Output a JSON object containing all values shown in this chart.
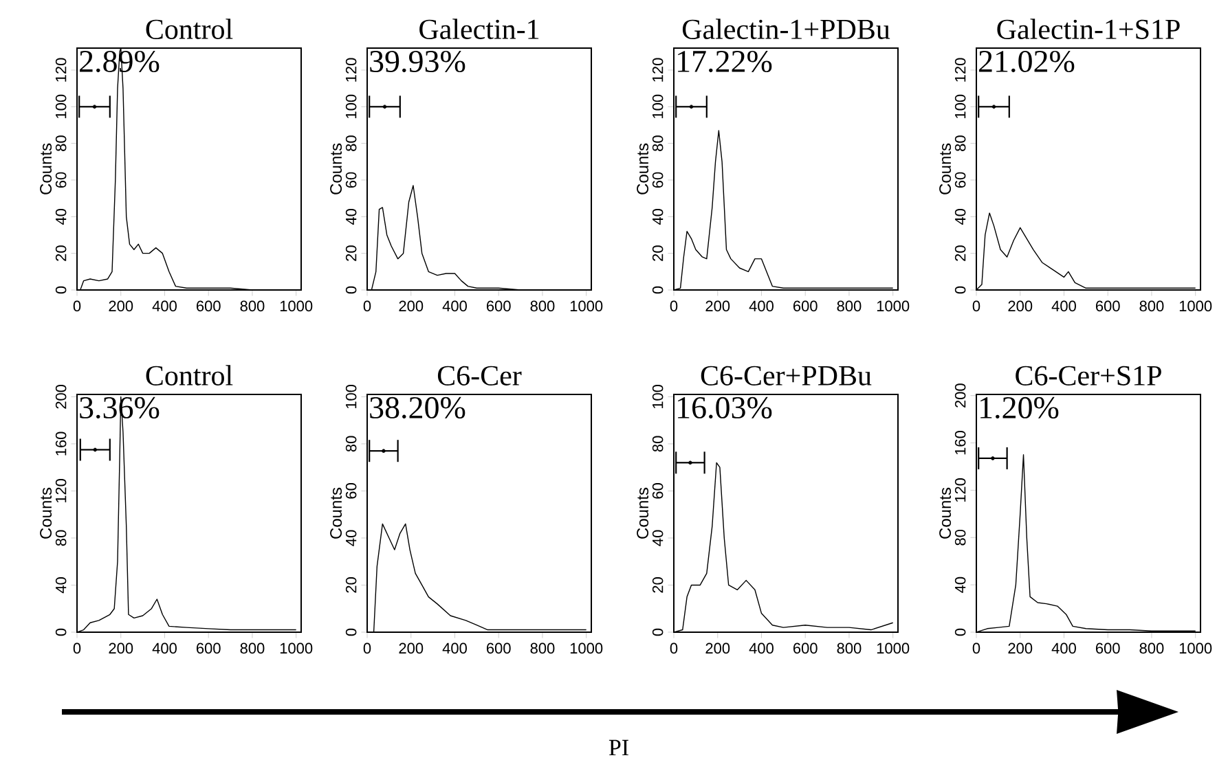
{
  "chart_data": [
    {
      "type": "line",
      "title": "Control",
      "ylabel": "Counts",
      "xlim": [
        0,
        1023
      ],
      "ylim": [
        0,
        132
      ],
      "xticks": [
        0,
        200,
        400,
        600,
        800,
        1000
      ],
      "yticks": [
        0,
        20,
        40,
        60,
        80,
        100,
        120
      ],
      "annotations": [
        "2.89%"
      ],
      "series": [
        {
          "type": "line",
          "color": "#000000",
          "x": [
            0,
            15,
            30,
            60,
            100,
            140,
            160,
            175,
            185,
            195,
            200,
            210,
            225,
            240,
            260,
            280,
            300,
            330,
            360,
            390,
            420,
            450,
            500,
            600,
            700,
            800,
            900,
            1000
          ],
          "values": [
            0,
            0,
            5,
            6,
            5,
            6,
            10,
            60,
            110,
            130,
            132,
            110,
            40,
            25,
            22,
            25,
            20,
            20,
            23,
            20,
            10,
            2,
            1,
            1,
            1,
            0,
            0,
            0
          ]
        },
        {
          "type": "scatter",
          "color": "#000000",
          "x": [
            80
          ],
          "values": [
            100
          ],
          "xerrors": [
            70
          ]
        }
      ]
    },
    {
      "type": "line",
      "title": "Galectin-1",
      "ylabel": "Counts",
      "xlim": [
        0,
        1023
      ],
      "ylim": [
        0,
        132
      ],
      "xticks": [
        0,
        200,
        400,
        600,
        800,
        1000
      ],
      "yticks": [
        0,
        20,
        40,
        60,
        80,
        100,
        120
      ],
      "annotations": [
        "39.93%"
      ],
      "series": [
        {
          "type": "line",
          "color": "#000000",
          "x": [
            0,
            20,
            40,
            55,
            70,
            90,
            110,
            140,
            165,
            190,
            210,
            230,
            250,
            280,
            320,
            360,
            400,
            430,
            460,
            500,
            600,
            700,
            800,
            900,
            1000
          ],
          "values": [
            0,
            0,
            10,
            44,
            45,
            30,
            24,
            17,
            20,
            48,
            57,
            40,
            20,
            10,
            8,
            9,
            9,
            5,
            2,
            1,
            1,
            0,
            0,
            0,
            0
          ]
        },
        {
          "type": "scatter",
          "color": "#000000",
          "x": [
            80
          ],
          "values": [
            100
          ],
          "xerrors": [
            70
          ]
        }
      ]
    },
    {
      "type": "line",
      "title": "Galectin-1+PDBu",
      "ylabel": "Counts",
      "xlim": [
        0,
        1023
      ],
      "ylim": [
        0,
        132
      ],
      "xticks": [
        0,
        200,
        400,
        600,
        800,
        1000
      ],
      "yticks": [
        0,
        20,
        40,
        60,
        80,
        100,
        120
      ],
      "annotations": [
        "17.22%"
      ],
      "series": [
        {
          "type": "line",
          "color": "#000000",
          "x": [
            0,
            30,
            45,
            60,
            80,
            100,
            130,
            150,
            175,
            190,
            205,
            220,
            240,
            260,
            300,
            340,
            370,
            400,
            430,
            450,
            500,
            600,
            700,
            800,
            900,
            1000
          ],
          "values": [
            0,
            1,
            18,
            32,
            28,
            22,
            18,
            17,
            45,
            70,
            87,
            70,
            22,
            17,
            12,
            10,
            17,
            17,
            8,
            2,
            1,
            1,
            1,
            1,
            1,
            1
          ]
        },
        {
          "type": "scatter",
          "color": "#000000",
          "x": [
            80
          ],
          "values": [
            100
          ],
          "xerrors": [
            70
          ]
        }
      ]
    },
    {
      "type": "line",
      "title": "Galectin-1+S1P",
      "ylabel": "Counts",
      "xlim": [
        0,
        1023
      ],
      "ylim": [
        0,
        132
      ],
      "xticks": [
        0,
        200,
        400,
        600,
        800,
        1000
      ],
      "yticks": [
        0,
        20,
        40,
        60,
        80,
        100,
        120
      ],
      "annotations": [
        "21.02%"
      ],
      "series": [
        {
          "type": "line",
          "color": "#000000",
          "x": [
            0,
            25,
            40,
            60,
            80,
            110,
            140,
            170,
            200,
            230,
            260,
            300,
            350,
            400,
            420,
            450,
            500,
            600,
            700,
            800,
            900,
            1000
          ],
          "values": [
            0,
            3,
            30,
            42,
            35,
            22,
            18,
            27,
            34,
            28,
            22,
            15,
            11,
            7,
            10,
            4,
            1,
            1,
            1,
            1,
            1,
            1
          ]
        },
        {
          "type": "scatter",
          "color": "#000000",
          "x": [
            80
          ],
          "values": [
            100
          ],
          "xerrors": [
            70
          ]
        }
      ]
    },
    {
      "type": "line",
      "title": "Control",
      "ylabel": "Counts",
      "xlim": [
        0,
        1023
      ],
      "ylim": [
        0,
        202
      ],
      "xticks": [
        0,
        200,
        400,
        600,
        800,
        1000
      ],
      "yticks": [
        0,
        40,
        80,
        120,
        160,
        200
      ],
      "annotations": [
        "3.36%"
      ],
      "series": [
        {
          "type": "line",
          "color": "#000000",
          "x": [
            0,
            30,
            60,
            100,
            150,
            170,
            185,
            195,
            200,
            210,
            225,
            235,
            260,
            300,
            340,
            365,
            390,
            420,
            500,
            600,
            700,
            800,
            900,
            1000
          ],
          "values": [
            0,
            2,
            8,
            10,
            15,
            20,
            60,
            150,
            200,
            170,
            90,
            15,
            12,
            14,
            20,
            28,
            15,
            5,
            4,
            3,
            2,
            2,
            2,
            2
          ]
        },
        {
          "type": "scatter",
          "color": "#000000",
          "x": [
            82.5
          ],
          "values": [
            155
          ],
          "xerrors": [
            67.5
          ]
        }
      ]
    },
    {
      "type": "line",
      "title": "C6-Cer",
      "ylabel": "Counts",
      "xlim": [
        0,
        1023
      ],
      "ylim": [
        0,
        101
      ],
      "xticks": [
        0,
        200,
        400,
        600,
        800,
        1000
      ],
      "yticks": [
        0,
        20,
        40,
        60,
        80,
        100
      ],
      "annotations": [
        "38.20%"
      ],
      "series": [
        {
          "type": "line",
          "color": "#000000",
          "x": [
            0,
            30,
            45,
            70,
            100,
            125,
            150,
            175,
            195,
            220,
            250,
            280,
            320,
            380,
            450,
            500,
            550,
            700,
            1000
          ],
          "values": [
            0,
            0,
            28,
            46,
            40,
            35,
            42,
            46,
            35,
            25,
            20,
            15,
            12,
            7,
            5,
            3,
            1,
            1,
            1
          ]
        },
        {
          "type": "scatter",
          "color": "#000000",
          "x": [
            75
          ],
          "values": [
            77
          ],
          "xerrors": [
            65
          ]
        }
      ]
    },
    {
      "type": "line",
      "title": "C6-Cer+PDBu",
      "ylabel": "Counts",
      "xlim": [
        0,
        1023
      ],
      "ylim": [
        0,
        101
      ],
      "xticks": [
        0,
        200,
        400,
        600,
        800,
        1000
      ],
      "yticks": [
        0,
        20,
        40,
        60,
        80,
        100
      ],
      "annotations": [
        "16.03%"
      ],
      "series": [
        {
          "type": "line",
          "color": "#000000",
          "x": [
            0,
            40,
            60,
            80,
            120,
            150,
            175,
            195,
            210,
            230,
            250,
            290,
            330,
            370,
            400,
            450,
            500,
            600,
            700,
            800,
            900,
            1000
          ],
          "values": [
            0,
            1,
            15,
            20,
            20,
            25,
            45,
            72,
            70,
            40,
            20,
            18,
            22,
            18,
            8,
            3,
            2,
            3,
            2,
            2,
            1,
            4
          ]
        },
        {
          "type": "scatter",
          "color": "#000000",
          "x": [
            75
          ],
          "values": [
            72
          ],
          "xerrors": [
            65
          ]
        }
      ]
    },
    {
      "type": "line",
      "title": "C6-Cer+S1P",
      "ylabel": "Counts",
      "xlim": [
        0,
        1023
      ],
      "ylim": [
        0,
        201
      ],
      "xticks": [
        0,
        200,
        400,
        600,
        800,
        1000
      ],
      "yticks": [
        0,
        40,
        80,
        120,
        160,
        200
      ],
      "annotations": [
        "1.20%"
      ],
      "series": [
        {
          "type": "line",
          "color": "#000000",
          "x": [
            0,
            50,
            100,
            150,
            180,
            200,
            215,
            230,
            245,
            280,
            320,
            370,
            410,
            440,
            500,
            600,
            700,
            800,
            900,
            1000
          ],
          "values": [
            0,
            3,
            4,
            5,
            40,
            100,
            150,
            80,
            30,
            25,
            24,
            22,
            15,
            5,
            3,
            2,
            2,
            1,
            1,
            1
          ]
        },
        {
          "type": "scatter",
          "color": "#000000",
          "x": [
            75
          ],
          "values": [
            147
          ],
          "xerrors": [
            65
          ]
        }
      ]
    },
    {
      "type": "other",
      "annotations": [
        "PI"
      ]
    }
  ]
}
